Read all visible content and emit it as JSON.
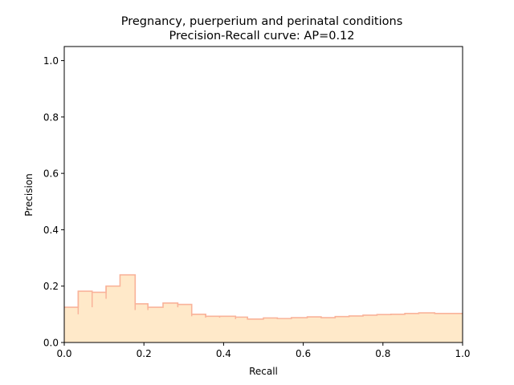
{
  "chart_data": {
    "type": "area",
    "title_line1": "Pregnancy, puerperium and perinatal conditions",
    "title_line2": "Precision-Recall curve: AP=0.12",
    "xlabel": "Recall",
    "ylabel": "Precision",
    "xlim": [
      0.0,
      1.0
    ],
    "ylim": [
      0.0,
      1.05
    ],
    "xticks": [
      {
        "value": 0.0,
        "label": "0.0"
      },
      {
        "value": 0.2,
        "label": "0.2"
      },
      {
        "value": 0.4,
        "label": "0.4"
      },
      {
        "value": 0.6,
        "label": "0.6"
      },
      {
        "value": 0.8,
        "label": "0.8"
      },
      {
        "value": 1.0,
        "label": "1.0"
      }
    ],
    "yticks": [
      {
        "value": 0.0,
        "label": "0.0"
      },
      {
        "value": 0.2,
        "label": "0.2"
      },
      {
        "value": 0.4,
        "label": "0.4"
      },
      {
        "value": 0.6,
        "label": "0.6"
      },
      {
        "value": 0.8,
        "label": "0.8"
      },
      {
        "value": 1.0,
        "label": "1.0"
      }
    ],
    "grid": false,
    "fill_color": "#ffe9c9",
    "line_color": "#f9b39a",
    "step_recall": [
      0.0,
      0.035,
      0.035,
      0.07,
      0.07,
      0.105,
      0.105,
      0.14,
      0.14,
      0.178,
      0.178,
      0.21,
      0.21,
      0.248,
      0.248,
      0.285,
      0.285,
      0.32,
      0.32,
      0.355,
      0.355,
      0.39,
      0.39,
      0.43,
      0.43,
      0.46,
      0.46,
      0.5,
      0.5,
      0.535,
      0.535,
      0.57,
      0.57,
      0.61,
      0.61,
      0.645,
      0.645,
      0.68,
      0.68,
      0.715,
      0.715,
      0.75,
      0.75,
      0.785,
      0.785,
      0.82,
      0.82,
      0.855,
      0.855,
      0.89,
      0.89,
      0.93,
      0.93,
      0.965,
      0.965,
      1.0
    ],
    "step_precision": [
      0.125,
      0.125,
      0.182,
      0.182,
      0.178,
      0.178,
      0.2,
      0.2,
      0.24,
      0.24,
      0.137,
      0.137,
      0.125,
      0.125,
      0.14,
      0.14,
      0.135,
      0.135,
      0.1,
      0.1,
      0.093,
      0.093,
      0.093,
      0.093,
      0.09,
      0.09,
      0.083,
      0.083,
      0.087,
      0.087,
      0.085,
      0.085,
      0.088,
      0.088,
      0.091,
      0.091,
      0.088,
      0.088,
      0.092,
      0.092,
      0.094,
      0.094,
      0.097,
      0.097,
      0.099,
      0.099,
      0.1,
      0.1,
      0.103,
      0.103,
      0.105,
      0.105,
      0.103,
      0.103,
      0.103,
      0.103
    ],
    "drop_ticks": [
      {
        "recall": 0.035,
        "from": 0.182,
        "to": 0.1
      },
      {
        "recall": 0.07,
        "from": 0.182,
        "to": 0.125
      },
      {
        "recall": 0.105,
        "from": 0.2,
        "to": 0.155
      },
      {
        "recall": 0.178,
        "from": 0.24,
        "to": 0.115
      },
      {
        "recall": 0.21,
        "from": 0.125,
        "to": 0.115
      },
      {
        "recall": 0.285,
        "from": 0.14,
        "to": 0.125
      },
      {
        "recall": 0.32,
        "from": 0.135,
        "to": 0.093
      },
      {
        "recall": 0.355,
        "from": 0.1,
        "to": 0.088
      },
      {
        "recall": 0.39,
        "from": 0.093,
        "to": 0.088
      },
      {
        "recall": 0.43,
        "from": 0.09,
        "to": 0.083
      }
    ]
  }
}
